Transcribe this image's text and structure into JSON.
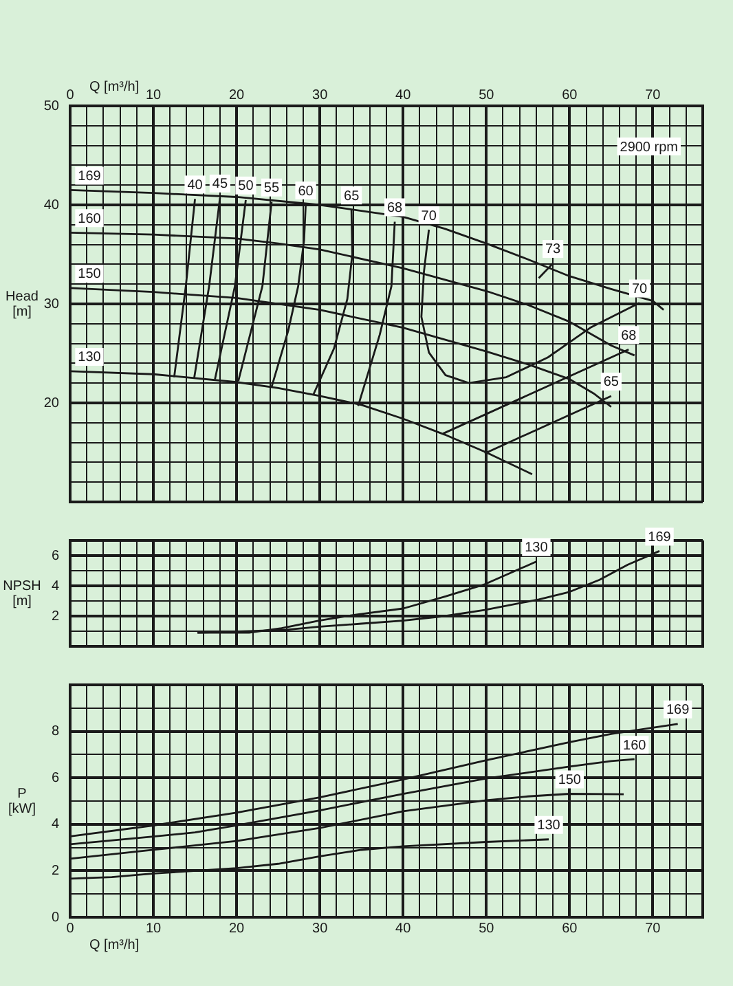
{
  "chart_data": [
    {
      "type": "line",
      "xlabel": "Q [m³/h]",
      "ylabel": "Head [m]",
      "annotations": [
        "2900 rpm"
      ],
      "xlim": [
        0,
        76
      ],
      "xticks": [
        0,
        {
          "value": 2,
          "label": null
        },
        {
          "value": 4,
          "label": null
        },
        {
          "value": 6,
          "label": null
        },
        {
          "value": 8,
          "label": null
        },
        10,
        {
          "value": 12,
          "label": null
        },
        {
          "value": 14,
          "label": null
        },
        {
          "value": 16,
          "label": null
        },
        {
          "value": 18,
          "label": null
        },
        20,
        {
          "value": 22,
          "label": null
        },
        {
          "value": 24,
          "label": null
        },
        {
          "value": 26,
          "label": null
        },
        {
          "value": 28,
          "label": null
        },
        30,
        {
          "value": 32,
          "label": null
        },
        {
          "value": 34,
          "label": null
        },
        {
          "value": 36,
          "label": null
        },
        {
          "value": 38,
          "label": null
        },
        40,
        {
          "value": 42,
          "label": null
        },
        {
          "value": 44,
          "label": null
        },
        {
          "value": 46,
          "label": null
        },
        {
          "value": 48,
          "label": null
        },
        50,
        {
          "value": 52,
          "label": null
        },
        {
          "value": 54,
          "label": null
        },
        {
          "value": 56,
          "label": null
        },
        {
          "value": 58,
          "label": null
        },
        60,
        {
          "value": 62,
          "label": null
        },
        {
          "value": 64,
          "label": null
        },
        {
          "value": 66,
          "label": null
        },
        {
          "value": 68,
          "label": null
        },
        70,
        {
          "value": 72,
          "label": null
        },
        {
          "value": 74,
          "label": null
        },
        {
          "value": 76,
          "label": null
        }
      ],
      "ylim": [
        10,
        50
      ],
      "yticks": [
        {
          "value": 10,
          "label": null
        },
        {
          "value": 12,
          "label": null
        },
        {
          "value": 14,
          "label": null
        },
        {
          "value": 16,
          "label": null
        },
        {
          "value": 18,
          "label": null
        },
        20,
        {
          "value": 22,
          "label": null
        },
        {
          "value": 24,
          "label": null
        },
        {
          "value": 26,
          "label": null
        },
        {
          "value": 28,
          "label": null
        },
        30,
        {
          "value": 32,
          "label": null
        },
        {
          "value": 34,
          "label": null
        },
        {
          "value": 36,
          "label": null
        },
        {
          "value": 38,
          "label": null
        },
        40,
        {
          "value": 42,
          "label": null
        },
        {
          "value": 44,
          "label": null
        },
        {
          "value": 46,
          "label": null
        },
        {
          "value": 48,
          "label": null
        },
        50
      ],
      "grid": true,
      "legend": false,
      "marker": "none",
      "line_style": "solid",
      "series": [
        {
          "name": "169",
          "color": "#1a1a1a",
          "x": [
            0,
            10,
            20,
            30,
            40,
            45,
            50,
            55,
            60,
            65,
            70,
            71.3
          ],
          "values": [
            41.5,
            41.2,
            40.8,
            40.0,
            38.8,
            37.6,
            36.1,
            34.5,
            32.8,
            31.5,
            30.3,
            29.4
          ]
        },
        {
          "name": "160",
          "color": "#1a1a1a",
          "x": [
            0,
            10,
            20,
            25,
            30,
            40,
            50,
            55,
            60,
            65,
            67.8
          ],
          "values": [
            37.2,
            37.0,
            36.6,
            36.1,
            35.5,
            33.6,
            31.3,
            29.9,
            28.2,
            25.8,
            24.8
          ]
        },
        {
          "name": "150",
          "color": "#1a1a1a",
          "x": [
            0,
            10,
            20,
            30,
            40,
            50,
            55,
            60,
            63,
            65
          ],
          "values": [
            31.6,
            31.2,
            30.6,
            29.4,
            27.6,
            25.2,
            23.9,
            22.4,
            20.9,
            19.6
          ]
        },
        {
          "name": "130",
          "color": "#1a1a1a",
          "x": [
            0,
            10,
            20,
            25,
            30,
            35,
            40,
            45,
            50,
            55.5
          ],
          "values": [
            23.2,
            22.9,
            22.1,
            21.5,
            20.7,
            19.8,
            18.4,
            16.8,
            15.0,
            12.8
          ]
        },
        {
          "name": "40",
          "color": "#1a1a1a",
          "x": [
            15.0,
            13.9,
            12.5
          ],
          "values": [
            40.6,
            31.8,
            22.6
          ]
        },
        {
          "name": "45",
          "color": "#1a1a1a",
          "x": [
            18.0,
            16.7,
            14.9
          ],
          "values": [
            40.7,
            31.8,
            22.5
          ]
        },
        {
          "name": "50",
          "color": "#1a1a1a",
          "x": [
            21.1,
            19.8,
            17.4
          ],
          "values": [
            40.5,
            31.8,
            22.4
          ]
        },
        {
          "name": "55",
          "color": "#1a1a1a",
          "x": [
            24.2,
            23.1,
            20.2
          ],
          "values": [
            40.3,
            31.8,
            22.2
          ]
        },
        {
          "name": "60",
          "color": "#1a1a1a",
          "x": [
            28.3,
            28.1,
            27.4,
            26.2,
            24.2
          ],
          "values": [
            40.0,
            36.4,
            31.8,
            27.3,
            21.6
          ]
        },
        {
          "name": "65",
          "color": "#1a1a1a",
          "x": [
            33.8,
            33.9,
            33.3,
            31.7,
            29.2
          ],
          "values": [
            39.5,
            35.0,
            30.5,
            25.5,
            20.8
          ]
        },
        {
          "name": "68",
          "color": "#1a1a1a",
          "x": [
            39.0,
            38.6,
            37.2,
            34.6
          ],
          "values": [
            38.3,
            31.8,
            26.9,
            19.7
          ]
        },
        {
          "name": "70",
          "color": "#1a1a1a",
          "x": [
            43.1,
            42.5,
            42.2,
            43.1,
            45.1,
            47.9
          ],
          "values": [
            37.5,
            33.2,
            28.7,
            25.1,
            22.8,
            22.0
          ]
        },
        {
          "name": "70",
          "color": "#1a1a1a",
          "x": [
            47.9,
            52.4,
            57.4,
            62.5,
            68.4
          ],
          "values": [
            22.0,
            22.6,
            24.6,
            27.6,
            30.1
          ]
        },
        {
          "name": "73",
          "color": "#1a1a1a",
          "x": [
            56.3,
            58.0
          ],
          "values": [
            32.6,
            34.1
          ]
        },
        {
          "name": "68",
          "color": "#1a1a1a",
          "x": [
            44.8,
            67.1
          ],
          "values": [
            16.9,
            25.4
          ]
        },
        {
          "name": "65",
          "color": "#1a1a1a",
          "x": [
            49.8,
            65.0
          ],
          "values": [
            14.9,
            20.7
          ]
        }
      ]
    },
    {
      "type": "line",
      "ylabel": "NPSH [m]",
      "tick_labels": "y",
      "xlim": [
        0,
        76
      ],
      "xticks": [
        0,
        {
          "value": 2,
          "label": null
        },
        {
          "value": 4,
          "label": null
        },
        {
          "value": 6,
          "label": null
        },
        {
          "value": 8,
          "label": null
        },
        10,
        {
          "value": 12,
          "label": null
        },
        {
          "value": 14,
          "label": null
        },
        {
          "value": 16,
          "label": null
        },
        {
          "value": 18,
          "label": null
        },
        20,
        {
          "value": 22,
          "label": null
        },
        {
          "value": 24,
          "label": null
        },
        {
          "value": 26,
          "label": null
        },
        {
          "value": 28,
          "label": null
        },
        30,
        {
          "value": 32,
          "label": null
        },
        {
          "value": 34,
          "label": null
        },
        {
          "value": 36,
          "label": null
        },
        {
          "value": 38,
          "label": null
        },
        40,
        {
          "value": 42,
          "label": null
        },
        {
          "value": 44,
          "label": null
        },
        {
          "value": 46,
          "label": null
        },
        {
          "value": 48,
          "label": null
        },
        50,
        {
          "value": 52,
          "label": null
        },
        {
          "value": 54,
          "label": null
        },
        {
          "value": 56,
          "label": null
        },
        {
          "value": 58,
          "label": null
        },
        60,
        {
          "value": 62,
          "label": null
        },
        {
          "value": 64,
          "label": null
        },
        {
          "value": 66,
          "label": null
        },
        {
          "value": 68,
          "label": null
        },
        70,
        {
          "value": 72,
          "label": null
        },
        {
          "value": 74,
          "label": null
        },
        {
          "value": 76,
          "label": null
        }
      ],
      "ylim": [
        0,
        7
      ],
      "yticks": [
        {
          "value": 0,
          "label": null
        },
        {
          "value": 1,
          "label": null
        },
        2,
        {
          "value": 3,
          "label": null
        },
        4,
        {
          "value": 5,
          "label": null
        },
        6,
        {
          "value": 7,
          "label": null
        }
      ],
      "grid": true,
      "legend": false,
      "marker": "none",
      "line_style": "solid",
      "series": [
        {
          "name": "130",
          "color": "#1a1a1a",
          "x": [
            15.3,
            21.5,
            25.4,
            29.9,
            34.4,
            40,
            45.1,
            49.8,
            56.0
          ],
          "values": [
            0.9,
            0.9,
            1.2,
            1.7,
            2.1,
            2.5,
            3.3,
            4.1,
            5.6
          ]
        },
        {
          "name": "169",
          "color": "#1a1a1a",
          "x": [
            15.3,
            21.5,
            26,
            30,
            35,
            40,
            45,
            49.8,
            56.3,
            60,
            63.6,
            67,
            70.8
          ],
          "values": [
            0.9,
            1.0,
            1.1,
            1.3,
            1.5,
            1.7,
            2.0,
            2.4,
            3.1,
            3.6,
            4.4,
            5.4,
            6.3
          ]
        }
      ]
    },
    {
      "type": "line",
      "xlabel": "Q [m³/h]",
      "ylabel": "P [kW]",
      "xlim": [
        0,
        76
      ],
      "xticks": [
        0,
        {
          "value": 2,
          "label": null
        },
        {
          "value": 4,
          "label": null
        },
        {
          "value": 6,
          "label": null
        },
        {
          "value": 8,
          "label": null
        },
        10,
        {
          "value": 12,
          "label": null
        },
        {
          "value": 14,
          "label": null
        },
        {
          "value": 16,
          "label": null
        },
        {
          "value": 18,
          "label": null
        },
        20,
        {
          "value": 22,
          "label": null
        },
        {
          "value": 24,
          "label": null
        },
        {
          "value": 26,
          "label": null
        },
        {
          "value": 28,
          "label": null
        },
        30,
        {
          "value": 32,
          "label": null
        },
        {
          "value": 34,
          "label": null
        },
        {
          "value": 36,
          "label": null
        },
        {
          "value": 38,
          "label": null
        },
        40,
        {
          "value": 42,
          "label": null
        },
        {
          "value": 44,
          "label": null
        },
        {
          "value": 46,
          "label": null
        },
        {
          "value": 48,
          "label": null
        },
        50,
        {
          "value": 52,
          "label": null
        },
        {
          "value": 54,
          "label": null
        },
        {
          "value": 56,
          "label": null
        },
        {
          "value": 58,
          "label": null
        },
        60,
        {
          "value": 62,
          "label": null
        },
        {
          "value": 64,
          "label": null
        },
        {
          "value": 66,
          "label": null
        },
        {
          "value": 68,
          "label": null
        },
        70,
        {
          "value": 72,
          "label": null
        },
        {
          "value": 74,
          "label": null
        },
        {
          "value": 76,
          "label": null
        }
      ],
      "ylim": [
        0,
        10
      ],
      "yticks": [
        0,
        {
          "value": 1,
          "label": null
        },
        2,
        {
          "value": 3,
          "label": null
        },
        4,
        {
          "value": 5,
          "label": null
        },
        6,
        {
          "value": 7,
          "label": null
        },
        8,
        {
          "value": 9,
          "label": null
        },
        {
          "value": 10,
          "label": null
        }
      ],
      "grid": true,
      "legend": false,
      "marker": "none",
      "line_style": "solid",
      "series": [
        {
          "name": "169",
          "color": "#1a1a1a",
          "x": [
            0,
            10,
            20,
            30,
            40,
            50,
            60,
            65,
            73
          ],
          "values": [
            3.48,
            3.95,
            4.5,
            5.16,
            5.93,
            6.76,
            7.53,
            7.89,
            8.32
          ]
        },
        {
          "name": "160",
          "color": "#1a1a1a",
          "x": [
            0,
            10,
            15,
            20,
            30,
            40,
            50,
            60,
            65,
            67.8
          ],
          "values": [
            3.14,
            3.47,
            3.65,
            3.95,
            4.6,
            5.31,
            5.97,
            6.48,
            6.72,
            6.8
          ]
        },
        {
          "name": "150",
          "color": "#1a1a1a",
          "x": [
            0,
            10,
            20,
            30,
            40,
            50,
            55,
            60,
            66.5
          ],
          "values": [
            2.52,
            2.9,
            3.28,
            3.84,
            4.56,
            5.03,
            5.2,
            5.31,
            5.29
          ]
        },
        {
          "name": "130",
          "color": "#1a1a1a",
          "x": [
            0,
            5,
            10,
            20,
            25,
            30,
            35,
            40,
            50,
            57.5
          ],
          "values": [
            1.66,
            1.73,
            1.88,
            2.11,
            2.3,
            2.62,
            2.9,
            3.05,
            3.24,
            3.35
          ]
        }
      ]
    }
  ]
}
